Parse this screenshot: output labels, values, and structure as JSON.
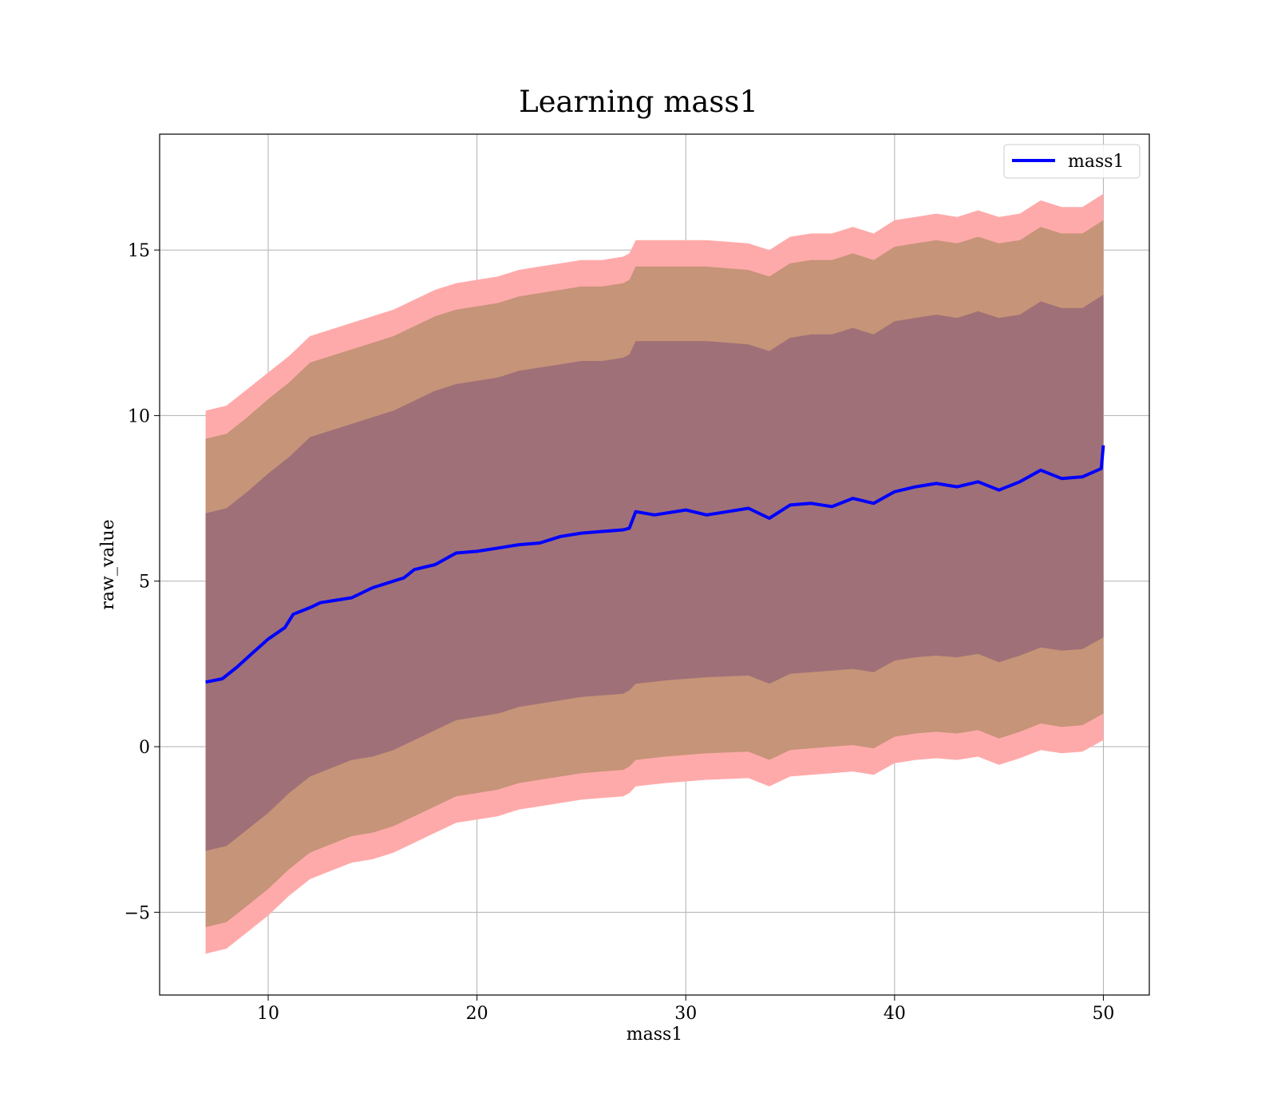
{
  "chart_data": {
    "type": "line",
    "title": "Learning mass1",
    "xlabel": "mass1",
    "ylabel": "raw_value",
    "xlim": [
      4.8,
      52.2
    ],
    "ylim": [
      -7.5,
      18.5
    ],
    "xticks": [
      10,
      20,
      30,
      40,
      50
    ],
    "yticks": [
      -5,
      0,
      5,
      10,
      15
    ],
    "ytick_labels": [
      "−5",
      "0",
      "5",
      "10",
      "15"
    ],
    "grid": true,
    "legend": {
      "position": "top-right",
      "entries": [
        "mass1"
      ]
    },
    "colors": {
      "line": "#0000ff",
      "band_outer": "#ffaaaa",
      "band_middle": "#c69478",
      "band_inner": "#a07078"
    },
    "series": [
      {
        "name": "mass1",
        "x": [
          7.0,
          7.8,
          8.5,
          9.2,
          10.0,
          10.8,
          11.2,
          12.0,
          12.5,
          13.0,
          14.0,
          15.0,
          16.0,
          16.5,
          17.0,
          18.0,
          19.0,
          20.0,
          21.0,
          22.0,
          23.0,
          24.0,
          25.0,
          26.0,
          27.0,
          27.3,
          27.6,
          28.5,
          30.0,
          31.0,
          32.0,
          33.0,
          34.0,
          35.0,
          36.0,
          37.0,
          38.0,
          39.0,
          40.0,
          41.0,
          42.0,
          43.0,
          44.0,
          45.0,
          46.0,
          47.0,
          48.0,
          49.0,
          49.9,
          50.0
        ],
        "y": [
          1.95,
          2.05,
          2.4,
          2.8,
          3.25,
          3.6,
          4.0,
          4.2,
          4.35,
          4.4,
          4.5,
          4.8,
          5.0,
          5.1,
          5.35,
          5.5,
          5.85,
          5.9,
          6.0,
          6.1,
          6.15,
          6.35,
          6.45,
          6.5,
          6.55,
          6.6,
          7.1,
          7.0,
          7.15,
          7.0,
          7.1,
          7.2,
          6.9,
          7.3,
          7.35,
          7.25,
          7.5,
          7.35,
          7.7,
          7.85,
          7.95,
          7.85,
          8.0,
          7.75,
          8.0,
          8.35,
          8.1,
          8.15,
          8.4,
          9.1
        ]
      }
    ],
    "bands": [
      {
        "name": "outer",
        "x": [
          7.0,
          8.0,
          9.0,
          10.0,
          11.0,
          12.0,
          13.0,
          14.0,
          15.0,
          16.0,
          17.0,
          18.0,
          19.0,
          20.0,
          21.0,
          22.0,
          23.0,
          24.0,
          25.0,
          26.0,
          27.0,
          27.3,
          27.6,
          29.0,
          31.0,
          33.0,
          34.0,
          35.0,
          36.0,
          37.0,
          38.0,
          39.0,
          40.0,
          41.0,
          42.0,
          43.0,
          44.0,
          45.0,
          46.0,
          47.0,
          48.0,
          49.0,
          50.0
        ],
        "upper": [
          10.15,
          10.3,
          10.8,
          11.3,
          11.8,
          12.4,
          12.6,
          12.8,
          13.0,
          13.2,
          13.5,
          13.8,
          14.0,
          14.1,
          14.2,
          14.4,
          14.5,
          14.6,
          14.7,
          14.7,
          14.8,
          14.9,
          15.3,
          15.3,
          15.3,
          15.2,
          15.0,
          15.4,
          15.5,
          15.5,
          15.7,
          15.5,
          15.9,
          16.0,
          16.1,
          16.0,
          16.2,
          16.0,
          16.1,
          16.5,
          16.3,
          16.3,
          16.7
        ],
        "lower": [
          -6.25,
          -6.1,
          -5.6,
          -5.1,
          -4.5,
          -4.0,
          -3.75,
          -3.5,
          -3.4,
          -3.2,
          -2.9,
          -2.6,
          -2.3,
          -2.2,
          -2.1,
          -1.9,
          -1.8,
          -1.7,
          -1.6,
          -1.55,
          -1.5,
          -1.4,
          -1.2,
          -1.1,
          -1.0,
          -0.95,
          -1.2,
          -0.9,
          -0.85,
          -0.8,
          -0.75,
          -0.85,
          -0.5,
          -0.4,
          -0.35,
          -0.4,
          -0.3,
          -0.55,
          -0.35,
          -0.1,
          -0.2,
          -0.15,
          0.2
        ]
      },
      {
        "name": "middle",
        "x": [
          7.0,
          8.0,
          9.0,
          10.0,
          11.0,
          12.0,
          13.0,
          14.0,
          15.0,
          16.0,
          17.0,
          18.0,
          19.0,
          20.0,
          21.0,
          22.0,
          23.0,
          24.0,
          25.0,
          26.0,
          27.0,
          27.3,
          27.6,
          29.0,
          31.0,
          33.0,
          34.0,
          35.0,
          36.0,
          37.0,
          38.0,
          39.0,
          40.0,
          41.0,
          42.0,
          43.0,
          44.0,
          45.0,
          46.0,
          47.0,
          48.0,
          49.0,
          50.0
        ],
        "upper": [
          9.3,
          9.45,
          9.95,
          10.5,
          11.0,
          11.6,
          11.8,
          12.0,
          12.2,
          12.4,
          12.7,
          13.0,
          13.2,
          13.3,
          13.4,
          13.6,
          13.7,
          13.8,
          13.9,
          13.9,
          14.0,
          14.1,
          14.5,
          14.5,
          14.5,
          14.4,
          14.2,
          14.6,
          14.7,
          14.7,
          14.9,
          14.7,
          15.1,
          15.2,
          15.3,
          15.2,
          15.4,
          15.2,
          15.3,
          15.7,
          15.5,
          15.5,
          15.9
        ],
        "lower": [
          -5.45,
          -5.3,
          -4.8,
          -4.3,
          -3.7,
          -3.2,
          -2.95,
          -2.7,
          -2.6,
          -2.4,
          -2.1,
          -1.8,
          -1.5,
          -1.4,
          -1.3,
          -1.1,
          -1.0,
          -0.9,
          -0.8,
          -0.75,
          -0.7,
          -0.6,
          -0.4,
          -0.3,
          -0.2,
          -0.15,
          -0.4,
          -0.1,
          -0.05,
          0.0,
          0.05,
          -0.05,
          0.3,
          0.4,
          0.45,
          0.4,
          0.5,
          0.25,
          0.45,
          0.7,
          0.6,
          0.65,
          1.0
        ]
      },
      {
        "name": "inner",
        "x": [
          7.0,
          8.0,
          9.0,
          10.0,
          11.0,
          12.0,
          13.0,
          14.0,
          15.0,
          16.0,
          17.0,
          18.0,
          19.0,
          20.0,
          21.0,
          22.0,
          23.0,
          24.0,
          25.0,
          26.0,
          27.0,
          27.3,
          27.6,
          29.0,
          31.0,
          33.0,
          34.0,
          35.0,
          36.0,
          37.0,
          38.0,
          39.0,
          40.0,
          41.0,
          42.0,
          43.0,
          44.0,
          45.0,
          46.0,
          47.0,
          48.0,
          49.0,
          50.0
        ],
        "upper": [
          7.05,
          7.2,
          7.7,
          8.25,
          8.75,
          9.35,
          9.55,
          9.75,
          9.95,
          10.15,
          10.45,
          10.75,
          10.95,
          11.05,
          11.15,
          11.35,
          11.45,
          11.55,
          11.65,
          11.65,
          11.75,
          11.85,
          12.25,
          12.25,
          12.25,
          12.15,
          11.95,
          12.35,
          12.45,
          12.45,
          12.65,
          12.45,
          12.85,
          12.95,
          13.05,
          12.95,
          13.15,
          12.95,
          13.05,
          13.45,
          13.25,
          13.25,
          13.65
        ],
        "lower": [
          -3.15,
          -3.0,
          -2.5,
          -2.0,
          -1.4,
          -0.9,
          -0.65,
          -0.4,
          -0.3,
          -0.1,
          0.2,
          0.5,
          0.8,
          0.9,
          1.0,
          1.2,
          1.3,
          1.4,
          1.5,
          1.55,
          1.6,
          1.7,
          1.9,
          2.0,
          2.1,
          2.15,
          1.9,
          2.2,
          2.25,
          2.3,
          2.35,
          2.25,
          2.6,
          2.7,
          2.75,
          2.7,
          2.8,
          2.55,
          2.75,
          3.0,
          2.9,
          2.95,
          3.3
        ]
      }
    ]
  }
}
